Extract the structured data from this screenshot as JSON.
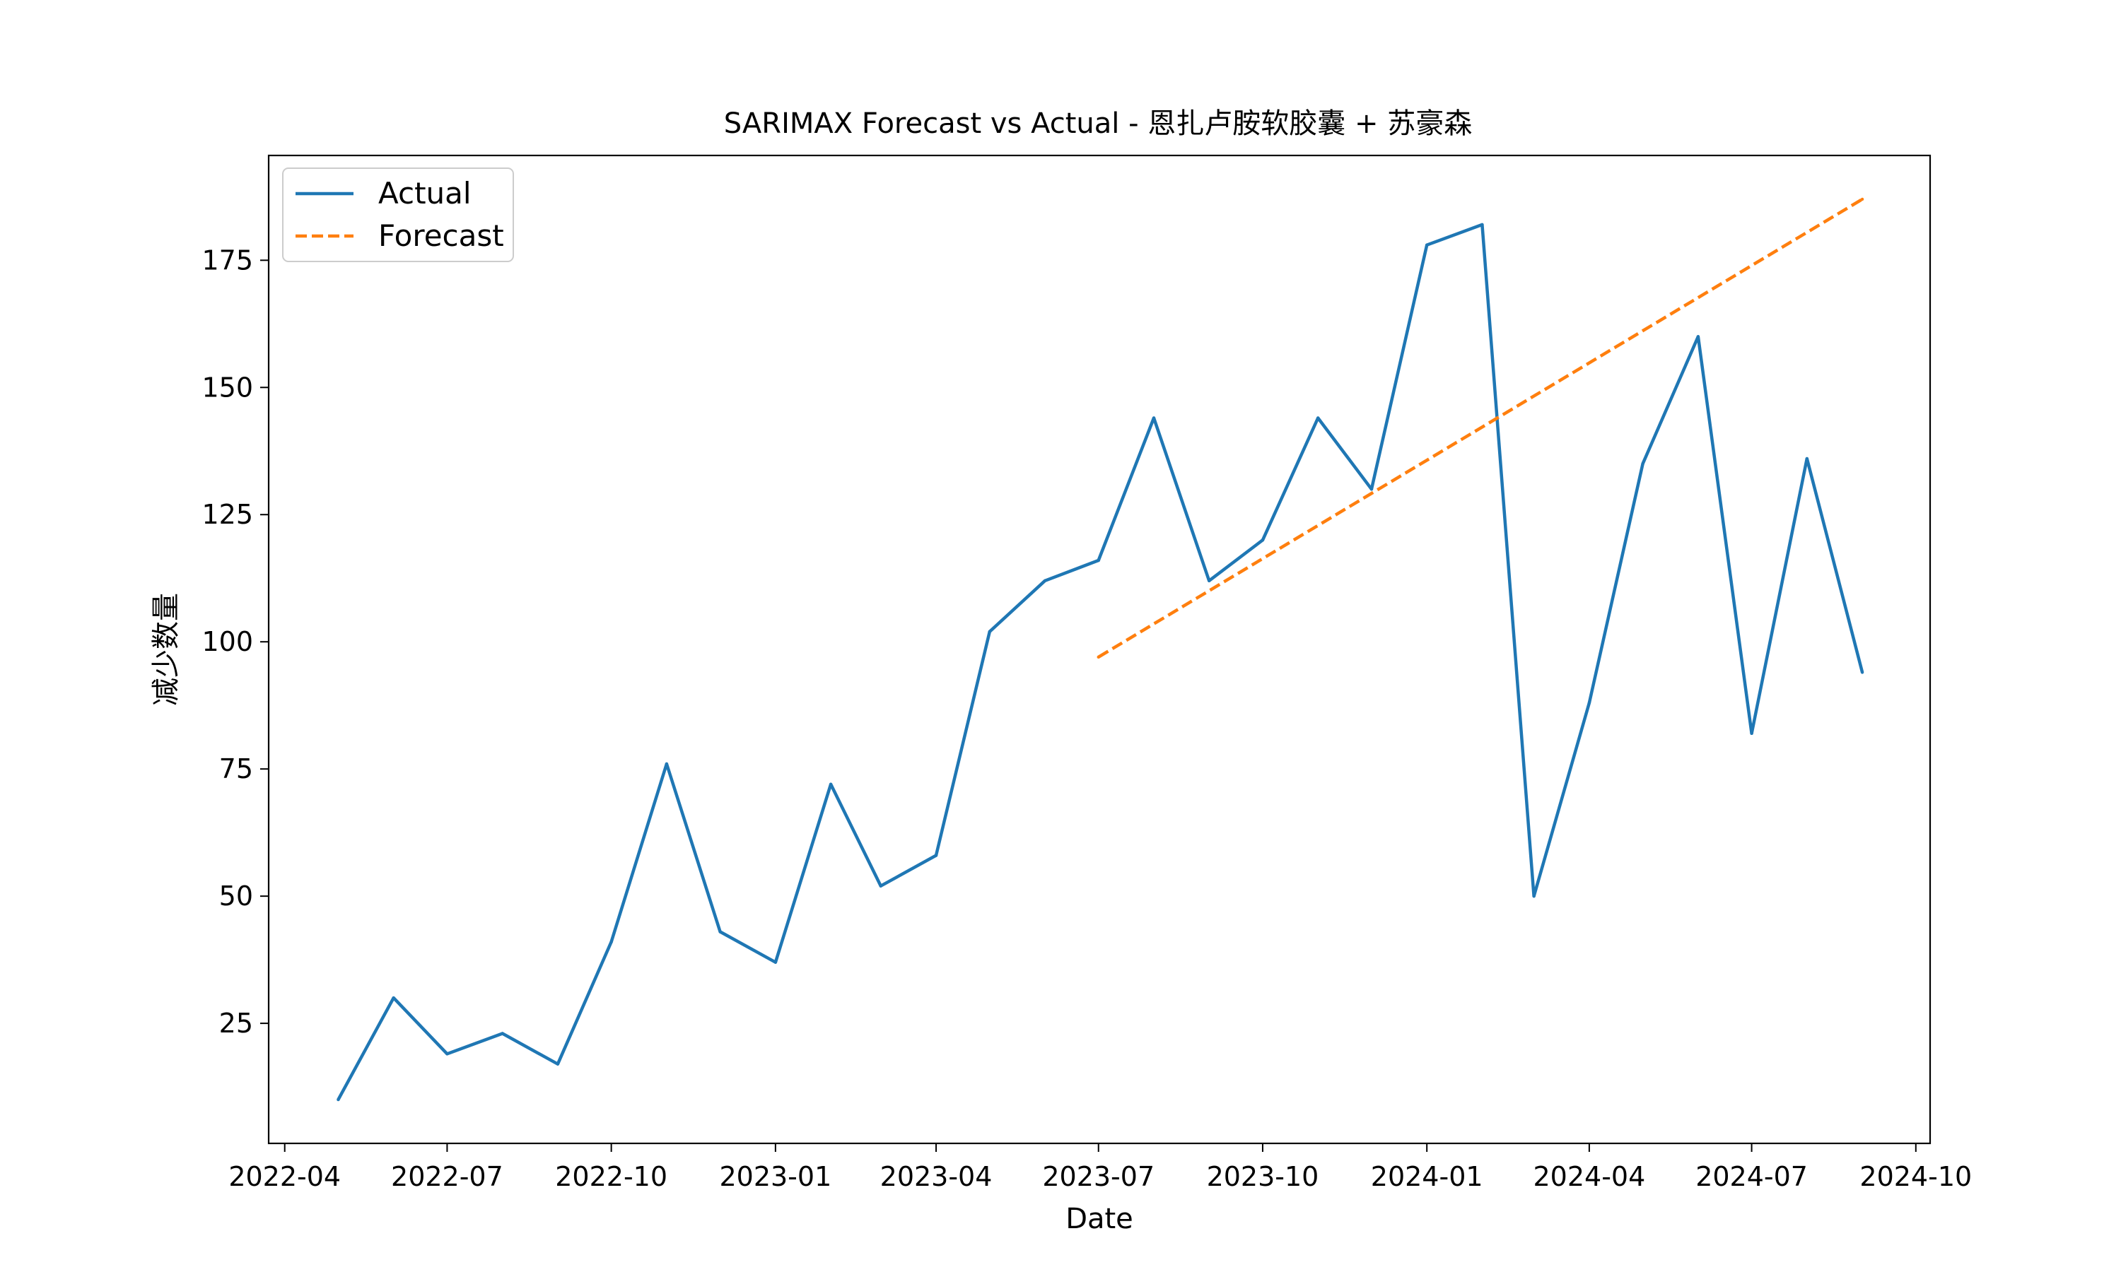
{
  "chart_data": {
    "type": "line",
    "title": "SARIMAX Forecast vs Actual - 恩扎卢胺软胶囊 + 苏豪森",
    "xlabel": "Date",
    "ylabel": "减少数量",
    "x_tick_labels": [
      "2022-04",
      "2022-07",
      "2022-10",
      "2023-01",
      "2023-04",
      "2023-07",
      "2023-10",
      "2024-01",
      "2024-04",
      "2024-07",
      "2024-10"
    ],
    "y_tick_labels": [
      "25",
      "50",
      "75",
      "100",
      "125",
      "150",
      "175"
    ],
    "y_ticks": [
      25,
      50,
      75,
      100,
      125,
      150,
      175
    ],
    "xlim": [
      "2022-03-23",
      "2024-10-09"
    ],
    "ylim": [
      1.4,
      195.6
    ],
    "legend_position": "top-left",
    "grid": false,
    "series": [
      {
        "name": "Actual",
        "color": "#1f77b4",
        "style": "solid",
        "x": [
          "2022-05-01",
          "2022-06-01",
          "2022-07-01",
          "2022-08-01",
          "2022-09-01",
          "2022-10-01",
          "2022-11-01",
          "2022-12-01",
          "2023-01-01",
          "2023-02-01",
          "2023-03-01",
          "2023-04-01",
          "2023-05-01",
          "2023-06-01",
          "2023-07-01",
          "2023-08-01",
          "2023-09-01",
          "2023-10-01",
          "2023-11-01",
          "2023-12-01",
          "2024-01-01",
          "2024-02-01",
          "2024-03-01",
          "2024-04-01",
          "2024-05-01",
          "2024-06-01",
          "2024-07-01",
          "2024-08-01",
          "2024-09-01"
        ],
        "values": [
          10,
          30,
          19,
          23,
          17,
          41,
          76,
          43,
          37,
          72,
          52,
          58,
          102,
          112,
          116,
          144,
          112,
          120,
          144,
          130,
          178,
          182,
          50,
          88,
          135,
          160,
          82,
          136,
          94
        ]
      },
      {
        "name": "Forecast",
        "color": "#ff7f0e",
        "style": "dashed",
        "x": [
          "2023-07-01",
          "2024-09-01"
        ],
        "values": [
          97,
          187
        ]
      }
    ]
  }
}
